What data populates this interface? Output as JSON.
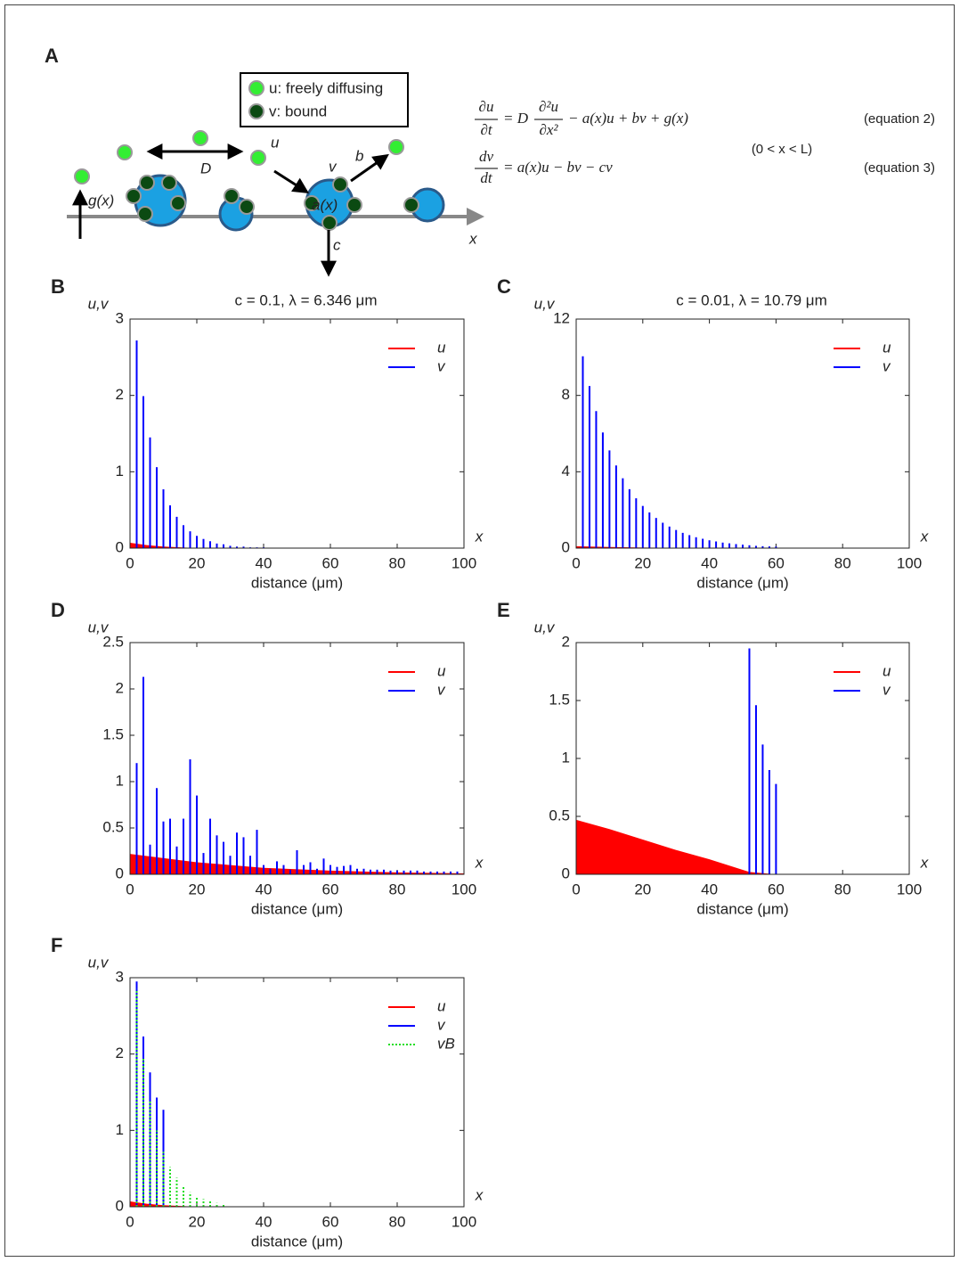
{
  "panel_a": {
    "letter": "A",
    "legend": [
      "u: freely diffusing",
      "v: bound"
    ],
    "labels": {
      "D": "D",
      "u": "u",
      "v": "v",
      "b": "b",
      "g": "g(x)",
      "a": "a(x)",
      "c": "c",
      "x": "x"
    },
    "equation_2": {
      "lhs_num": "∂u",
      "lhs_den": "∂t",
      "eq": "= D",
      "frac_num": "∂²u",
      "frac_den": "∂x²",
      "rest": "− a(x)u + bv + g(x)",
      "tag": "(equation 2)"
    },
    "equation_3": {
      "lhs_num": "dv",
      "lhs_den": "dt",
      "rest": "= a(x)u − bv − cv",
      "tag": "(equation 3)"
    },
    "domain": "(0 < x < L)"
  },
  "chart_data": [
    {
      "type": "stem",
      "panel": "B",
      "title": "c = 0.1, λ = 6.346 μm",
      "ylabel": "u,v",
      "xlabel": "distance (μm)",
      "axis_symbol": "x",
      "xlim": [
        0,
        100
      ],
      "xticks": [
        0,
        20,
        40,
        60,
        80,
        100
      ],
      "ylim": [
        0,
        3
      ],
      "yticks": [
        0,
        1,
        2,
        3
      ],
      "series": [
        {
          "name": "u",
          "color": "#ff0000",
          "fill": true,
          "x": [
            0,
            5,
            10,
            15,
            20,
            100
          ],
          "values": [
            0.07,
            0.04,
            0.02,
            0.01,
            0,
            0
          ]
        },
        {
          "name": "v",
          "color": "#0000ff",
          "x": [
            2,
            4,
            6,
            8,
            10,
            12,
            14,
            16,
            18,
            20,
            22,
            24,
            26,
            28,
            30,
            32,
            34,
            36,
            38,
            40
          ],
          "values": [
            2.72,
            1.99,
            1.45,
            1.06,
            0.77,
            0.56,
            0.41,
            0.3,
            0.22,
            0.16,
            0.12,
            0.09,
            0.06,
            0.05,
            0.03,
            0.02,
            0.02,
            0.01,
            0.01,
            0.01
          ]
        }
      ]
    },
    {
      "type": "stem",
      "panel": "C",
      "title": "c = 0.01, λ = 10.79 μm",
      "ylabel": "u,v",
      "xlabel": "distance (μm)",
      "axis_symbol": "x",
      "xlim": [
        0,
        100
      ],
      "xticks": [
        0,
        20,
        40,
        60,
        80,
        100
      ],
      "ylim": [
        0,
        12
      ],
      "yticks": [
        0,
        4,
        8,
        12
      ],
      "series": [
        {
          "name": "u",
          "color": "#ff0000",
          "fill": true,
          "x": [
            0,
            10,
            20,
            40,
            100
          ],
          "values": [
            0.1,
            0.06,
            0.03,
            0.01,
            0
          ]
        },
        {
          "name": "v",
          "color": "#0000ff",
          "x": [
            2,
            4,
            6,
            8,
            10,
            12,
            14,
            16,
            18,
            20,
            22,
            24,
            26,
            28,
            30,
            32,
            34,
            36,
            38,
            40,
            42,
            44,
            46,
            48,
            50,
            52,
            54,
            56,
            58,
            60
          ],
          "values": [
            10.05,
            8.49,
            7.18,
            6.06,
            5.12,
            4.33,
            3.66,
            3.09,
            2.61,
            2.21,
            1.87,
            1.58,
            1.33,
            1.13,
            0.95,
            0.8,
            0.68,
            0.57,
            0.49,
            0.41,
            0.35,
            0.29,
            0.25,
            0.21,
            0.18,
            0.15,
            0.12,
            0.1,
            0.09,
            0.08
          ]
        }
      ]
    },
    {
      "type": "stem",
      "panel": "D",
      "ylabel": "u,v",
      "xlabel": "distance (μm)",
      "axis_symbol": "x",
      "xlim": [
        0,
        100
      ],
      "xticks": [
        0,
        20,
        40,
        60,
        80,
        100
      ],
      "ylim": [
        0,
        2.5
      ],
      "yticks": [
        0,
        0.5,
        1,
        1.5,
        2,
        2.5
      ],
      "series": [
        {
          "name": "u",
          "color": "#ff0000",
          "fill": true,
          "x": [
            0,
            20,
            40,
            60,
            80,
            100
          ],
          "values": [
            0.22,
            0.13,
            0.07,
            0.04,
            0.02,
            0.01
          ]
        },
        {
          "name": "v",
          "color": "#0000ff",
          "x": [
            2,
            4,
            6,
            8,
            10,
            12,
            14,
            16,
            18,
            20,
            22,
            24,
            26,
            28,
            30,
            32,
            34,
            36,
            38,
            40,
            42,
            44,
            46,
            48,
            50,
            52,
            54,
            56,
            58,
            60,
            62,
            64,
            66,
            68,
            70,
            72,
            74,
            76,
            78,
            80,
            82,
            84,
            86,
            88,
            90,
            92,
            94,
            96,
            98
          ],
          "values": [
            1.2,
            2.13,
            0.32,
            0.93,
            0.57,
            0.6,
            0.3,
            0.6,
            1.24,
            0.85,
            0.23,
            0.6,
            0.42,
            0.35,
            0.2,
            0.45,
            0.4,
            0.2,
            0.48,
            0.1,
            0.06,
            0.14,
            0.1,
            0.05,
            0.26,
            0.1,
            0.13,
            0.06,
            0.17,
            0.1,
            0.08,
            0.09,
            0.1,
            0.06,
            0.06,
            0.05,
            0.05,
            0.05,
            0.04,
            0.04,
            0.04,
            0.04,
            0.04,
            0.03,
            0.03,
            0.03,
            0.03,
            0.03,
            0.03
          ]
        }
      ]
    },
    {
      "type": "stem",
      "panel": "E",
      "ylabel": "u,v",
      "xlabel": "distance (μm)",
      "axis_symbol": "x",
      "xlim": [
        0,
        100
      ],
      "xticks": [
        0,
        20,
        40,
        60,
        80,
        100
      ],
      "ylim": [
        0,
        2
      ],
      "yticks": [
        0,
        0.5,
        1,
        1.5,
        2
      ],
      "series": [
        {
          "name": "u",
          "color": "#ff0000",
          "fill": true,
          "x": [
            0,
            10,
            20,
            30,
            40,
            52,
            60,
            100
          ],
          "values": [
            0.47,
            0.39,
            0.3,
            0.21,
            0.13,
            0.02,
            0,
            0
          ]
        },
        {
          "name": "v",
          "color": "#0000ff",
          "x": [
            52,
            54,
            56,
            58,
            60
          ],
          "values": [
            1.95,
            1.46,
            1.12,
            0.9,
            0.78
          ]
        }
      ]
    },
    {
      "type": "stem",
      "panel": "F",
      "ylabel": "u,v",
      "xlabel": "distance (μm)",
      "axis_symbol": "x",
      "xlim": [
        0,
        100
      ],
      "xticks": [
        0,
        20,
        40,
        60,
        80,
        100
      ],
      "ylim": [
        0,
        3
      ],
      "yticks": [
        0,
        1,
        2,
        3
      ],
      "series": [
        {
          "name": "u",
          "color": "#ff0000",
          "fill": true,
          "x": [
            0,
            5,
            10,
            15,
            20,
            100
          ],
          "values": [
            0.07,
            0.04,
            0.02,
            0.01,
            0,
            0
          ]
        },
        {
          "name": "v",
          "color": "#0000ff",
          "x": [
            2,
            4,
            6,
            8,
            10
          ],
          "values": [
            2.95,
            2.23,
            1.76,
            1.43,
            1.27
          ]
        },
        {
          "name": "vB",
          "color": "#22dd22",
          "dashed": true,
          "x": [
            2,
            4,
            6,
            8,
            10,
            12,
            14,
            16,
            18,
            20,
            22,
            24,
            26,
            28
          ],
          "values": [
            2.85,
            1.95,
            1.4,
            1.0,
            0.72,
            0.52,
            0.38,
            0.27,
            0.19,
            0.14,
            0.1,
            0.07,
            0.05,
            0.03
          ]
        }
      ]
    }
  ]
}
